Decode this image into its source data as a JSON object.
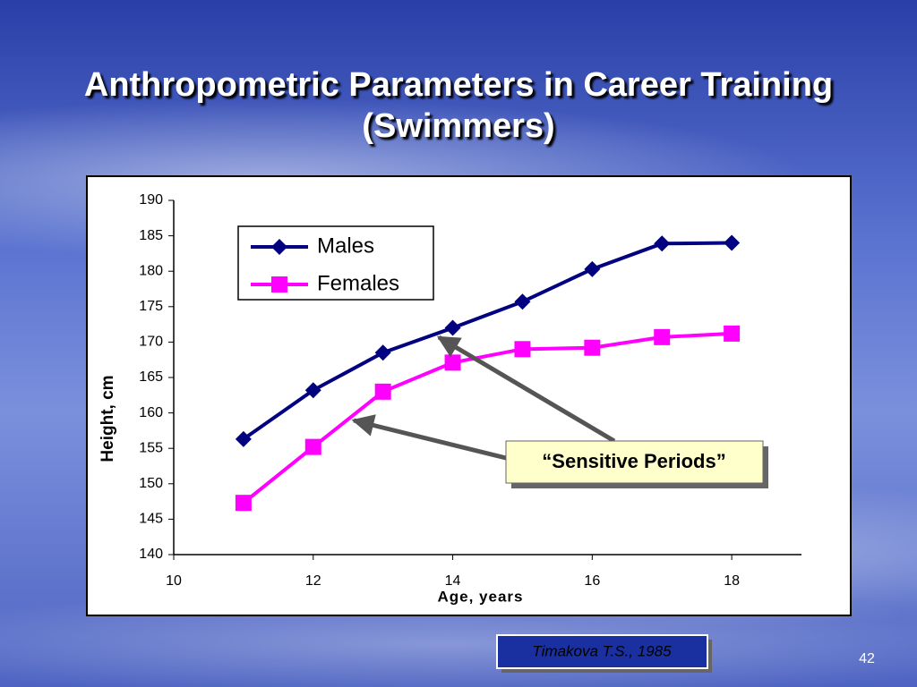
{
  "slide": {
    "title": "Anthropometric Parameters in Career Training (Swimmers)",
    "source": "Timakova T.S., 1985",
    "page_number": "42"
  },
  "chart_data": {
    "type": "line",
    "x_label": "Age, years",
    "y_label": "Height, cm",
    "xlim": [
      10,
      19
    ],
    "xticks": [
      10,
      12,
      14,
      16,
      18
    ],
    "ylim": [
      140,
      190
    ],
    "yticks": [
      140,
      145,
      150,
      155,
      160,
      165,
      170,
      175,
      180,
      185,
      190
    ],
    "grid": false,
    "legend": "upper left",
    "x": [
      11,
      12,
      13,
      14,
      15,
      16,
      17,
      18
    ],
    "series": [
      {
        "name": "Males",
        "color": "#000080",
        "marker": "diamond",
        "values": [
          156.3,
          163.2,
          168.5,
          172,
          175.7,
          180.3,
          183.9,
          184
        ]
      },
      {
        "name": "Females",
        "color": "#ff00ff",
        "marker": "square",
        "values": [
          147.3,
          155.2,
          163,
          167.1,
          169,
          169.2,
          170.7,
          171.2
        ]
      }
    ],
    "annotation": "“Sensitive Periods”"
  }
}
